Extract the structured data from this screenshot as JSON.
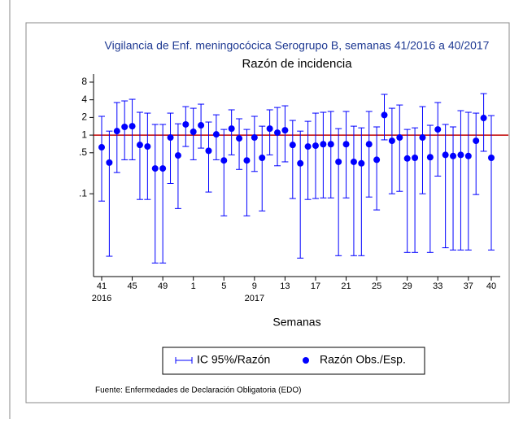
{
  "chart_data": {
    "type": "errorbar",
    "title": "Vigilancia de Enf. meningocócica Serogrupo B, semanas 41/2016 a 40/2017",
    "subtitle": "Razón de incidencia",
    "x_label": "Semanas",
    "footnote": "Fuente: Enfermedades de Declaración Obligatoria (EDO)",
    "categories": [
      "41",
      null,
      null,
      null,
      "45",
      null,
      null,
      null,
      "49",
      null,
      null,
      null,
      "1",
      null,
      null,
      null,
      "5",
      null,
      null,
      null,
      "9",
      null,
      null,
      null,
      "13",
      null,
      null,
      null,
      "17",
      null,
      null,
      null,
      "21",
      null,
      null,
      null,
      "25",
      null,
      null,
      null,
      "29",
      null,
      null,
      null,
      "33",
      null,
      null,
      null,
      "37",
      null,
      null,
      "40"
    ],
    "x_sublabels": [
      "2016",
      null,
      null,
      null,
      null,
      null,
      null,
      null,
      null,
      null,
      null,
      null,
      null,
      null,
      null,
      null,
      null,
      null,
      null,
      null,
      "2017",
      null,
      null,
      null,
      null,
      null,
      null,
      null,
      null,
      null,
      null,
      null,
      null,
      null,
      null,
      null,
      null,
      null,
      null,
      null,
      null,
      null,
      null,
      null,
      null,
      null,
      null,
      null,
      null,
      null,
      null,
      null
    ],
    "series": [
      {
        "name": "Razón Obs./Esp.",
        "color": "#0000ff",
        "values": [
          0.62,
          0.34,
          1.17,
          1.38,
          1.42,
          0.68,
          0.64,
          0.27,
          0.27,
          0.91,
          0.45,
          1.52,
          1.14,
          1.47,
          0.54,
          1.03,
          0.37,
          1.29,
          0.88,
          0.37,
          0.91,
          0.41,
          1.29,
          1.1,
          1.21,
          0.68,
          0.33,
          0.64,
          0.66,
          0.7,
          0.7,
          0.35,
          0.7,
          0.35,
          0.33,
          0.7,
          0.38,
          2.2,
          0.8,
          0.91,
          0.4,
          0.41,
          0.91,
          0.42,
          1.25,
          0.46,
          0.44,
          0.46,
          0.44,
          0.8,
          1.96,
          0.41
        ]
      }
    ],
    "ci": {
      "name": "IC 95%/Razón",
      "color": "#0000ff",
      "lower": [
        0.075,
        0.0086,
        0.23,
        0.38,
        0.38,
        0.08,
        0.08,
        0.0066,
        0.0066,
        0.15,
        0.056,
        0.64,
        0.38,
        0.6,
        0.107,
        0.38,
        0.042,
        0.46,
        0.26,
        0.042,
        0.24,
        0.051,
        0.46,
        0.3,
        0.35,
        0.083,
        0.008,
        0.08,
        0.083,
        0.085,
        0.085,
        0.0088,
        0.085,
        0.0088,
        0.0088,
        0.088,
        0.053,
        0.83,
        0.1,
        0.11,
        0.01,
        0.01,
        0.1,
        0.01,
        0.2,
        0.012,
        0.011,
        0.011,
        0.011,
        0.097,
        0.53,
        0.011
      ],
      "upper": [
        2.09,
        1.17,
        3.59,
        3.83,
        4.08,
        2.45,
        2.37,
        1.52,
        1.52,
        2.37,
        1.56,
        3.06,
        2.87,
        3.37,
        1.67,
        2.22,
        1.25,
        2.7,
        1.9,
        1.25,
        2.09,
        1.42,
        2.7,
        2.96,
        3.16,
        1.78,
        1.17,
        1.72,
        2.37,
        2.45,
        2.53,
        1.29,
        2.53,
        1.42,
        1.33,
        2.53,
        1.38,
        4.95,
        2.87,
        3.26,
        1.25,
        1.33,
        3.06,
        1.47,
        3.59,
        1.52,
        1.38,
        2.61,
        2.45,
        2.37,
        5.1,
        2.15
      ]
    },
    "ylim": [
      0.004,
      11
    ],
    "yticks": [
      8,
      4,
      2,
      1,
      {
        "value": 0.5,
        "label": ".5"
      },
      {
        "value": 0.1,
        "label": ".1"
      }
    ],
    "y_log": true,
    "refline": {
      "value": 1,
      "color": "#c00000"
    }
  }
}
